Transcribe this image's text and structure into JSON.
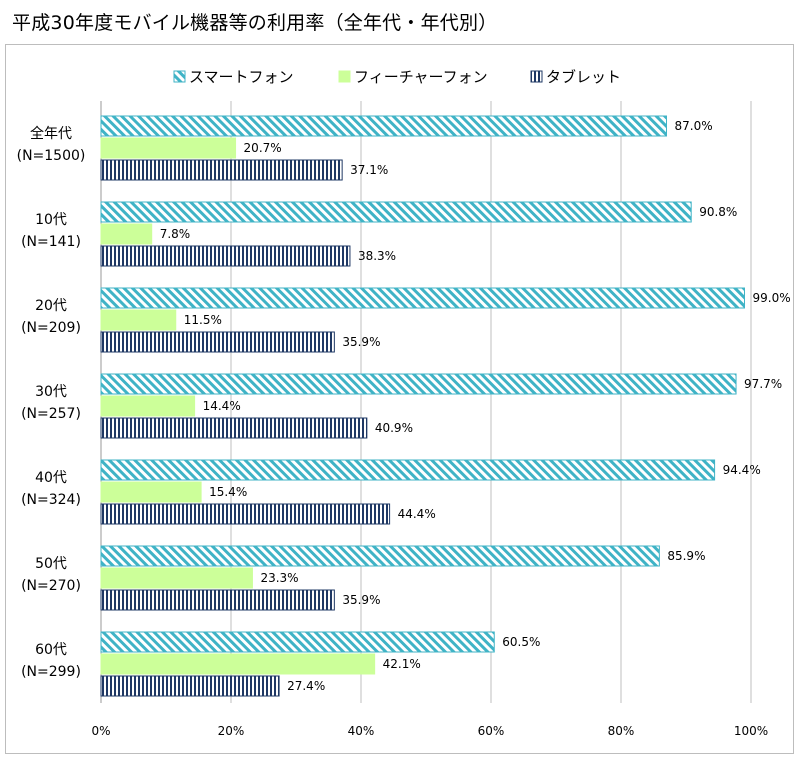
{
  "page": {
    "title": "平成30年度モバイル機器等の利用率（全年代・年代別）"
  },
  "chart_data": {
    "type": "bar",
    "orientation": "horizontal",
    "title": "平成30年度モバイル機器等の利用率（全年代・年代別）",
    "categories": [
      {
        "label": "全年代",
        "sub": "(N=1500)"
      },
      {
        "label": "10代",
        "sub": "(N=141)"
      },
      {
        "label": "20代",
        "sub": "(N=209)"
      },
      {
        "label": "30代",
        "sub": "(N=257)"
      },
      {
        "label": "40代",
        "sub": "(N=324)"
      },
      {
        "label": "50代",
        "sub": "(N=270)"
      },
      {
        "label": "60代",
        "sub": "(N=299)"
      }
    ],
    "series": [
      {
        "name": "スマートフォン",
        "values": [
          87.0,
          90.8,
          99.0,
          97.7,
          94.4,
          85.9,
          60.5
        ],
        "color": "#3fb3c6"
      },
      {
        "name": "フィーチャーフォン",
        "values": [
          20.7,
          7.8,
          11.5,
          14.4,
          15.4,
          23.3,
          42.1
        ],
        "color": "#ccff99"
      },
      {
        "name": "タブレット",
        "values": [
          37.1,
          38.3,
          35.9,
          40.9,
          44.4,
          35.9,
          27.4
        ],
        "color": "#1f3864"
      }
    ],
    "value_labels": [
      [
        "87.0%",
        "90.8%",
        "99.0%",
        "97.7%",
        "94.4%",
        "85.9%",
        "60.5%"
      ],
      [
        "20.7%",
        "7.8%",
        "11.5%",
        "14.4%",
        "15.4%",
        "23.3%",
        "42.1%"
      ],
      [
        "37.1%",
        "38.3%",
        "35.9%",
        "40.9%",
        "44.4%",
        "35.9%",
        "27.4%"
      ]
    ],
    "xlim": [
      0,
      100
    ],
    "xticks": [
      0,
      20,
      40,
      60,
      80,
      100
    ],
    "xtick_labels": [
      "0%",
      "20%",
      "40%",
      "60%",
      "80%",
      "100%"
    ],
    "xlabel": "",
    "ylabel": "",
    "grid": true,
    "legend_position": "top"
  }
}
